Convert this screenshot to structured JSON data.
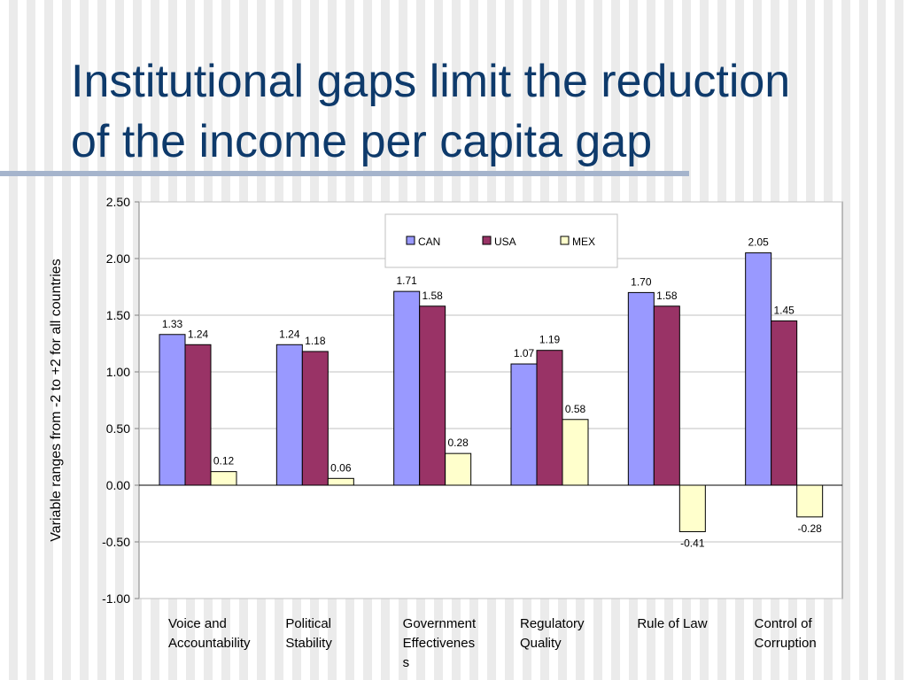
{
  "slide": {
    "title_line1": "Institutional gaps limit the reduction",
    "title_line2": "of the income per capita gap"
  },
  "colors": {
    "CAN": "#9999ff",
    "USA": "#993366",
    "MEX": "#ffffcc",
    "title": "#0e3a6b"
  },
  "chart_data": {
    "type": "bar",
    "title": "",
    "xlabel": "",
    "ylabel": "Variable ranges from -2 to +2 for all countries",
    "ylim": [
      -1.0,
      2.5
    ],
    "yticks": [
      "2.50",
      "2.00",
      "1.50",
      "1.00",
      "0.50",
      "0.00",
      "-0.50",
      "-1.00"
    ],
    "grid": true,
    "legend_position": "top-center",
    "categories": [
      [
        "Voice and",
        "Accountability"
      ],
      [
        "Political",
        "Stability"
      ],
      [
        "Government",
        "Effectivenes",
        "s"
      ],
      [
        "Regulatory",
        "Quality"
      ],
      [
        "Rule of Law"
      ],
      [
        "Control of",
        "Corruption"
      ]
    ],
    "series": [
      {
        "name": "CAN",
        "values": [
          1.33,
          1.24,
          1.71,
          1.07,
          1.7,
          2.05
        ],
        "labels": [
          "1.33",
          "1.24",
          "1.71",
          "1.07",
          "1.70",
          "2.05"
        ]
      },
      {
        "name": "USA",
        "values": [
          1.24,
          1.18,
          1.58,
          1.19,
          1.58,
          1.45
        ],
        "labels": [
          "1.24",
          "1.18",
          "1.58",
          "1.19",
          "1.58",
          "1.45"
        ]
      },
      {
        "name": "MEX",
        "values": [
          0.12,
          0.06,
          0.28,
          0.58,
          -0.41,
          -0.28
        ],
        "labels": [
          "0.12",
          "0.06",
          "0.28",
          "0.58",
          "-0.41",
          "-0.28"
        ]
      }
    ]
  }
}
